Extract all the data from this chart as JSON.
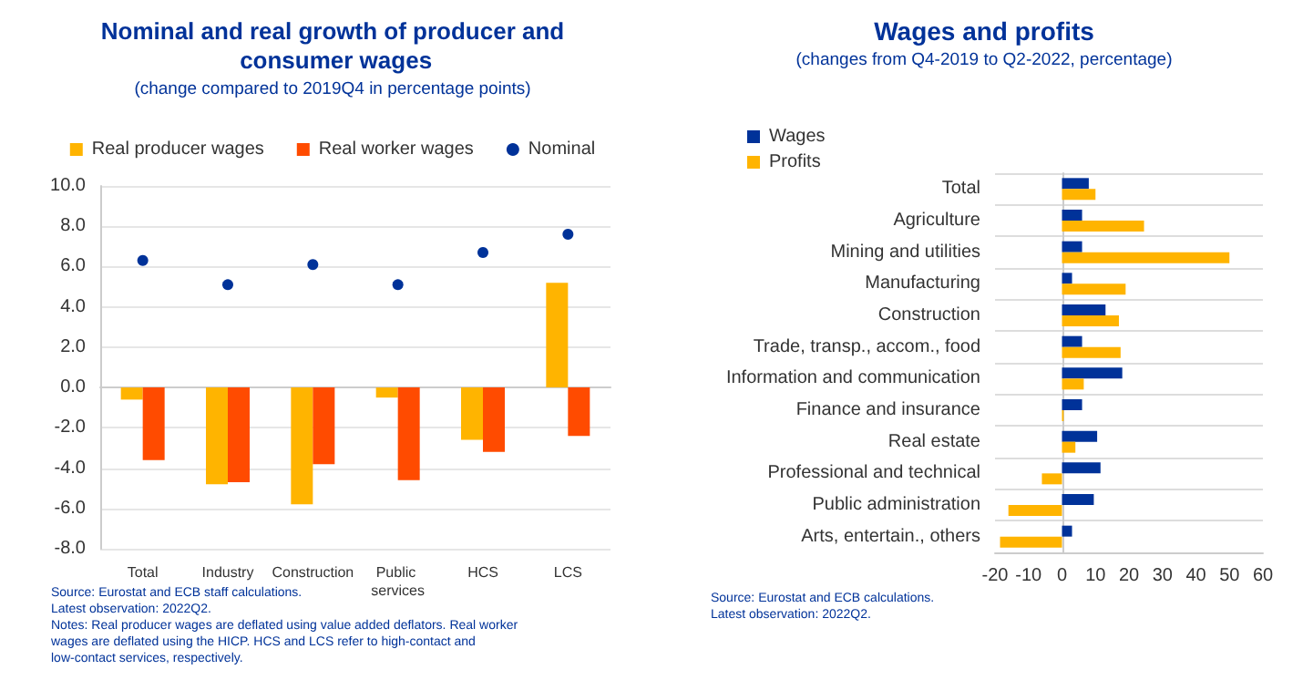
{
  "chart_data": [
    {
      "type": "bar",
      "title": "Nominal and real growth of producer and consumer wages",
      "subtitle": "(change compared to 2019Q4 in percentage points)",
      "categories": [
        "Total",
        "Industry",
        "Construction",
        "Public services",
        "HCS",
        "LCS"
      ],
      "series": [
        {
          "name": "Real producer wages",
          "color": "#ffb400",
          "values": [
            -0.6,
            -4.8,
            -5.8,
            -0.5,
            -2.6,
            5.2
          ]
        },
        {
          "name": "Real worker wages",
          "color": "#ff4b00",
          "values": [
            -3.6,
            -4.7,
            -3.8,
            -4.6,
            -3.2,
            -2.4
          ]
        },
        {
          "name": "Nominal",
          "type": "scatter",
          "marker": "circle",
          "color": "#003299",
          "x": [
            "Total",
            "Industry",
            "Construction",
            "Public services",
            "HCS",
            "LCS"
          ],
          "values": [
            6.3,
            5.1,
            6.1,
            5.1,
            6.7,
            7.6
          ]
        }
      ],
      "ylim": [
        -8,
        10
      ],
      "yticks": [
        {
          "value": -8,
          "label": "-8.0"
        },
        {
          "value": -6,
          "label": "-6.0"
        },
        {
          "value": -4,
          "label": "-4.0"
        },
        {
          "value": -2,
          "label": "-2.0"
        },
        {
          "value": 0,
          "label": "0.0"
        },
        {
          "value": 2,
          "label": "2.0"
        },
        {
          "value": 4,
          "label": "4.0"
        },
        {
          "value": 6,
          "label": "6.0"
        },
        {
          "value": 8,
          "label": "8.0"
        },
        {
          "value": 10,
          "label": "10.0"
        }
      ],
      "legend": "top",
      "grid": "y",
      "annotations": [
        "Source: Eurostat and ECB staff calculations.",
        "Latest observation: 2022Q2.",
        "Notes: Real producer wages are deflated using value added deflators. Real worker wages are deflated using the HICP. HCS and LCS refer to high-contact and low-contact services, respectively."
      ]
    },
    {
      "type": "bar",
      "orientation": "horizontal",
      "title": "Wages and profits",
      "subtitle": "(changes from Q4-2019 to Q2-2022, percentage)",
      "categories": [
        "Total",
        "Agriculture",
        "Mining and utilities",
        "Manufacturing",
        "Construction",
        "Trade, transp., accom., food",
        "Information and communication",
        "Finance and insurance",
        "Real estate",
        "Professional and technical",
        "Public administration",
        "Arts, entertain., others"
      ],
      "series": [
        {
          "name": "Wages",
          "color": "#003299",
          "values": [
            8,
            6,
            6,
            3,
            13,
            6,
            18,
            6,
            10.5,
            11.5,
            9.5,
            3
          ]
        },
        {
          "name": "Profits",
          "color": "#ffb400",
          "values": [
            10,
            24.5,
            50,
            19,
            17,
            17.5,
            6.5,
            0.5,
            4,
            -6,
            -16,
            -18.5
          ]
        }
      ],
      "xlim": [
        -20,
        60
      ],
      "xticks": [
        -20,
        -10,
        0,
        10,
        20,
        30,
        40,
        50,
        60
      ],
      "legend": "top",
      "grid": "y",
      "annotations": [
        "Source: Eurostat and ECB calculations.",
        "Latest observation: 2022Q2."
      ]
    }
  ]
}
